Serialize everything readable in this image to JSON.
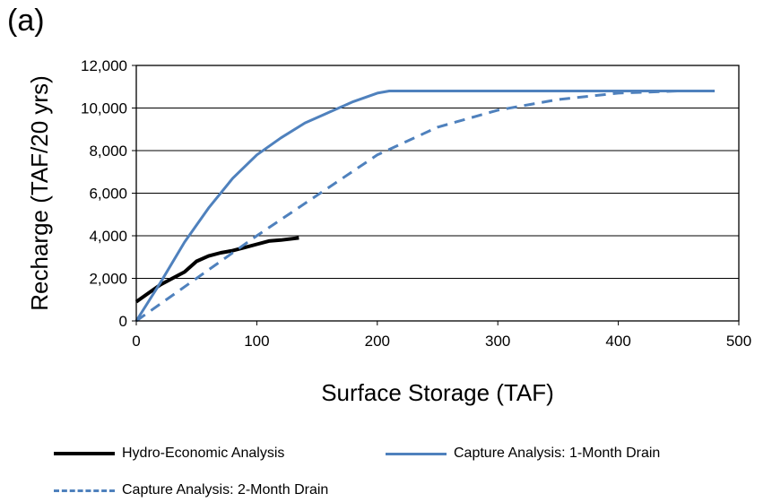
{
  "panel_label": "(a)",
  "chart_data": {
    "type": "line",
    "xlabel": "Surface Storage (TAF)",
    "ylabel": "Recharge (TAF/20 yrs)",
    "xlim": [
      0,
      500
    ],
    "ylim": [
      0,
      12000
    ],
    "xticks": [
      0,
      100,
      200,
      300,
      400,
      500
    ],
    "yticks": [
      0,
      2000,
      4000,
      6000,
      8000,
      10000,
      12000
    ],
    "xtick_labels": [
      "0",
      "100",
      "200",
      "300",
      "400",
      "500"
    ],
    "ytick_labels": [
      "0",
      "2,000",
      "4,000",
      "6,000",
      "8,000",
      "10,000",
      "12,000"
    ],
    "grid": "horizontal",
    "legend_position": "bottom",
    "series": [
      {
        "name": "Hydro-Economic Analysis",
        "color": "#000000",
        "style": "solid",
        "x": [
          0,
          10,
          20,
          30,
          40,
          50,
          60,
          70,
          80,
          90,
          100,
          110,
          120,
          135
        ],
        "y": [
          900,
          1300,
          1700,
          2000,
          2300,
          2800,
          3050,
          3200,
          3300,
          3450,
          3600,
          3750,
          3800,
          3900
        ]
      },
      {
        "name": "Capture Analysis: 1-Month Drain",
        "color": "#4f81bd",
        "style": "solid",
        "x": [
          0,
          20,
          40,
          60,
          80,
          100,
          120,
          140,
          160,
          180,
          200,
          210,
          300,
          400,
          480
        ],
        "y": [
          0,
          1800,
          3700,
          5300,
          6700,
          7800,
          8600,
          9300,
          9800,
          10300,
          10700,
          10800,
          10800,
          10800,
          10800
        ]
      },
      {
        "name": "Capture Analysis: 2-Month Drain",
        "color": "#4f81bd",
        "style": "dashed",
        "x": [
          0,
          50,
          100,
          150,
          200,
          250,
          300,
          350,
          400,
          450
        ],
        "y": [
          0,
          2000,
          4000,
          5900,
          7800,
          9100,
          9900,
          10400,
          10700,
          10800
        ]
      }
    ]
  }
}
